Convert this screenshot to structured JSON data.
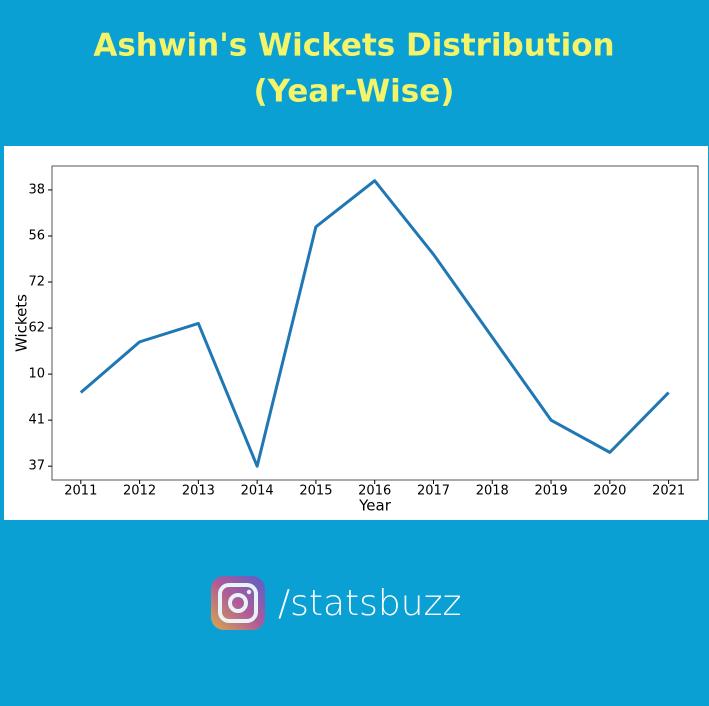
{
  "chart_data": {
    "type": "line",
    "title": [
      "Ashwin's Wickets Distribution",
      "(Year-Wise)"
    ],
    "xlabel": "Year",
    "ylabel": "Wickets",
    "x": [
      2011,
      2012,
      2013,
      2014,
      2015,
      2016,
      2017,
      2018,
      2019,
      2020,
      2021
    ],
    "series": [
      {
        "name": "Wickets",
        "color": "#1f77b4",
        "values": [
          1.6,
          2.7,
          3.1,
          0,
          5.2,
          6.2,
          4.6,
          2.8,
          1.0,
          0.3,
          1.6
        ]
      }
    ],
    "xlim": [
      2010.51,
      2021.5
    ],
    "xticks": [
      2011,
      2012,
      2013,
      2014,
      2015,
      2016,
      2017,
      2018,
      2019,
      2020,
      2021
    ],
    "ylim": [
      -0.3,
      6.52
    ],
    "yticks": [
      {
        "value": 0,
        "label": "37"
      },
      {
        "value": 1,
        "label": "41"
      },
      {
        "value": 2,
        "label": "10"
      },
      {
        "value": 3,
        "label": "62"
      },
      {
        "value": 4,
        "label": "72"
      },
      {
        "value": 5,
        "label": "56"
      },
      {
        "value": 6,
        "label": "38"
      }
    ],
    "grid": false
  },
  "footer": {
    "handle": "/statsbuzz"
  }
}
